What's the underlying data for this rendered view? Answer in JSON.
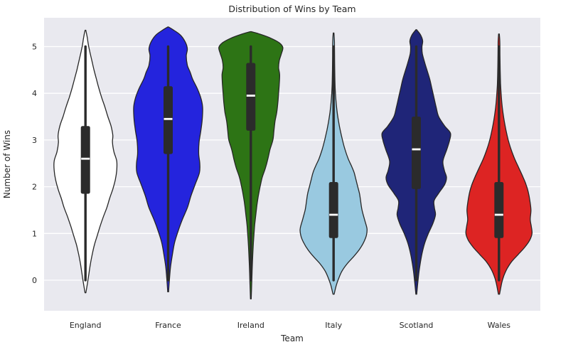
{
  "chart_data": {
    "type": "violin",
    "title": "Distribution of Wins by Team",
    "xlabel": "Team",
    "ylabel": "Number of Wins",
    "categories": [
      "England",
      "France",
      "Ireland",
      "Italy",
      "Scotland",
      "Wales"
    ],
    "yticks": [
      0,
      1,
      2,
      3,
      4,
      5
    ],
    "ylim_display": [
      -0.65,
      5.6
    ],
    "grid": true,
    "legend": false,
    "style": {
      "figure_bg": "#ffffff",
      "plot_bg": "#e9e9ef",
      "grid_color": "#ffffff",
      "violin_stroke": "#262626",
      "box_color": "#2b2b2b",
      "whisker_color": "#2b2b2b",
      "median_color": "#ffffff",
      "text_color": "#262626"
    },
    "teams": [
      {
        "name": "England",
        "color": "#ffffff",
        "median": 2.6,
        "q1": 1.85,
        "q3": 3.3,
        "whisker_low": 0,
        "whisker_high": 5,
        "profile": [
          [
            5.35,
            0.5
          ],
          [
            5.2,
            2.5
          ],
          [
            5.05,
            4
          ],
          [
            4.9,
            6
          ],
          [
            4.7,
            9
          ],
          [
            4.5,
            12
          ],
          [
            4.3,
            15.5
          ],
          [
            4.1,
            19
          ],
          [
            3.9,
            23
          ],
          [
            3.7,
            27.5
          ],
          [
            3.5,
            31.5
          ],
          [
            3.3,
            36
          ],
          [
            3.1,
            38.5
          ],
          [
            2.95,
            38
          ],
          [
            2.75,
            40
          ],
          [
            2.55,
            44
          ],
          [
            2.35,
            44
          ],
          [
            2.15,
            42
          ],
          [
            1.95,
            38.5
          ],
          [
            1.75,
            34
          ],
          [
            1.55,
            30
          ],
          [
            1.35,
            25
          ],
          [
            1.15,
            20.5
          ],
          [
            0.95,
            16.5
          ],
          [
            0.75,
            12.5
          ],
          [
            0.55,
            9.5
          ],
          [
            0.35,
            7
          ],
          [
            0.15,
            5
          ],
          [
            -0.05,
            3
          ],
          [
            -0.27,
            0.6
          ]
        ]
      },
      {
        "name": "France",
        "color": "#2424dd",
        "median": 3.45,
        "q1": 2.7,
        "q3": 4.15,
        "whisker_low": 0,
        "whisker_high": 5,
        "profile": [
          [
            5.42,
            0.5
          ],
          [
            5.35,
            8
          ],
          [
            5.25,
            17
          ],
          [
            5.1,
            24
          ],
          [
            4.95,
            27
          ],
          [
            4.8,
            25.5
          ],
          [
            4.6,
            27
          ],
          [
            4.45,
            31
          ],
          [
            4.3,
            34.5
          ],
          [
            4.1,
            41
          ],
          [
            3.9,
            46
          ],
          [
            3.7,
            48.5
          ],
          [
            3.45,
            48
          ],
          [
            3.2,
            46
          ],
          [
            2.95,
            43.5
          ],
          [
            2.7,
            43
          ],
          [
            2.5,
            44.5
          ],
          [
            2.3,
            44
          ],
          [
            2.05,
            38
          ],
          [
            1.8,
            32
          ],
          [
            1.55,
            27
          ],
          [
            1.3,
            20
          ],
          [
            1.05,
            14
          ],
          [
            0.8,
            9
          ],
          [
            0.55,
            6
          ],
          [
            0.3,
            3.5
          ],
          [
            0.05,
            2
          ],
          [
            -0.25,
            0.6
          ]
        ]
      },
      {
        "name": "Ireland",
        "color": "#2d7415",
        "median": 3.95,
        "q1": 3.2,
        "q3": 4.65,
        "whisker_low": 0,
        "whisker_high": 5,
        "profile": [
          [
            5.32,
            0.5
          ],
          [
            5.27,
            12
          ],
          [
            5.18,
            28
          ],
          [
            5.08,
            40
          ],
          [
            4.98,
            45
          ],
          [
            4.85,
            43
          ],
          [
            4.7,
            40
          ],
          [
            4.55,
            39
          ],
          [
            4.4,
            40.5
          ],
          [
            4.2,
            40
          ],
          [
            4.0,
            39
          ],
          [
            3.8,
            38
          ],
          [
            3.6,
            36.5
          ],
          [
            3.4,
            34
          ],
          [
            3.2,
            32.5
          ],
          [
            3.0,
            31
          ],
          [
            2.8,
            27
          ],
          [
            2.6,
            24
          ],
          [
            2.4,
            20.5
          ],
          [
            2.2,
            16
          ],
          [
            2.0,
            13
          ],
          [
            1.8,
            10.5
          ],
          [
            1.6,
            8.5
          ],
          [
            1.4,
            7
          ],
          [
            1.2,
            5.5
          ],
          [
            1.0,
            4.5
          ],
          [
            0.8,
            3.6
          ],
          [
            0.6,
            2.9
          ],
          [
            0.4,
            2.3
          ],
          [
            0.2,
            1.8
          ],
          [
            0.0,
            1.4
          ],
          [
            -0.4,
            0.5
          ]
        ]
      },
      {
        "name": "Italy",
        "color": "#99c9e0",
        "median": 1.4,
        "q1": 0.9,
        "q3": 2.1,
        "whisker_low": 0,
        "whisker_high": 5,
        "profile": [
          [
            5.29,
            0.5
          ],
          [
            5.1,
            1.2
          ],
          [
            4.8,
            1.4
          ],
          [
            4.5,
            1.6
          ],
          [
            4.2,
            2
          ],
          [
            4.0,
            2.6
          ],
          [
            3.8,
            3.6
          ],
          [
            3.6,
            5
          ],
          [
            3.4,
            7
          ],
          [
            3.2,
            9.5
          ],
          [
            3.0,
            12.5
          ],
          [
            2.8,
            16
          ],
          [
            2.6,
            20.5
          ],
          [
            2.45,
            25
          ],
          [
            2.3,
            29
          ],
          [
            2.15,
            31.5
          ],
          [
            2.0,
            34
          ],
          [
            1.85,
            36.5
          ],
          [
            1.7,
            38
          ],
          [
            1.5,
            40
          ],
          [
            1.3,
            43.5
          ],
          [
            1.1,
            47
          ],
          [
            0.95,
            46
          ],
          [
            0.8,
            42
          ],
          [
            0.65,
            36
          ],
          [
            0.5,
            28
          ],
          [
            0.35,
            19
          ],
          [
            0.2,
            12
          ],
          [
            0.05,
            7.5
          ],
          [
            -0.1,
            4
          ],
          [
            -0.3,
            0.8
          ]
        ]
      },
      {
        "name": "Scotland",
        "color": "#1f2578",
        "median": 2.8,
        "q1": 1.95,
        "q3": 3.5,
        "whisker_low": 0,
        "whisker_high": 5,
        "profile": [
          [
            5.36,
            0.5
          ],
          [
            5.25,
            6
          ],
          [
            5.12,
            9
          ],
          [
            5.0,
            8
          ],
          [
            4.85,
            8.5
          ],
          [
            4.65,
            12
          ],
          [
            4.5,
            15
          ],
          [
            4.3,
            19
          ],
          [
            4.1,
            22
          ],
          [
            3.9,
            25
          ],
          [
            3.7,
            28
          ],
          [
            3.5,
            31.5
          ],
          [
            3.3,
            40
          ],
          [
            3.15,
            48
          ],
          [
            3.0,
            47
          ],
          [
            2.8,
            43
          ],
          [
            2.55,
            37.5
          ],
          [
            2.35,
            39.5
          ],
          [
            2.2,
            42.5
          ],
          [
            2.05,
            40
          ],
          [
            1.85,
            31
          ],
          [
            1.7,
            25
          ],
          [
            1.55,
            25.5
          ],
          [
            1.4,
            27
          ],
          [
            1.2,
            23
          ],
          [
            1.0,
            17
          ],
          [
            0.8,
            12
          ],
          [
            0.6,
            8.5
          ],
          [
            0.4,
            6
          ],
          [
            0.2,
            4
          ],
          [
            0.0,
            2.5
          ],
          [
            -0.3,
            0.6
          ]
        ]
      },
      {
        "name": "Wales",
        "color": "#dd2423",
        "median": 1.4,
        "q1": 0.9,
        "q3": 2.1,
        "whisker_low": 0,
        "whisker_high": 5,
        "profile": [
          [
            5.27,
            0.5
          ],
          [
            5.1,
            1.2
          ],
          [
            4.8,
            1.4
          ],
          [
            4.5,
            1.7
          ],
          [
            4.2,
            2.2
          ],
          [
            4.0,
            3
          ],
          [
            3.8,
            4
          ],
          [
            3.6,
            5.5
          ],
          [
            3.4,
            7.5
          ],
          [
            3.2,
            10
          ],
          [
            3.0,
            13
          ],
          [
            2.8,
            17
          ],
          [
            2.6,
            22
          ],
          [
            2.4,
            28
          ],
          [
            2.2,
            34
          ],
          [
            2.05,
            38
          ],
          [
            1.9,
            41
          ],
          [
            1.7,
            43.5
          ],
          [
            1.5,
            45
          ],
          [
            1.3,
            44
          ],
          [
            1.15,
            45.5
          ],
          [
            1.0,
            46.5
          ],
          [
            0.85,
            43
          ],
          [
            0.7,
            36
          ],
          [
            0.55,
            27
          ],
          [
            0.4,
            18
          ],
          [
            0.25,
            11.5
          ],
          [
            0.1,
            7
          ],
          [
            -0.05,
            4
          ],
          [
            -0.3,
            0.8
          ]
        ]
      }
    ]
  }
}
